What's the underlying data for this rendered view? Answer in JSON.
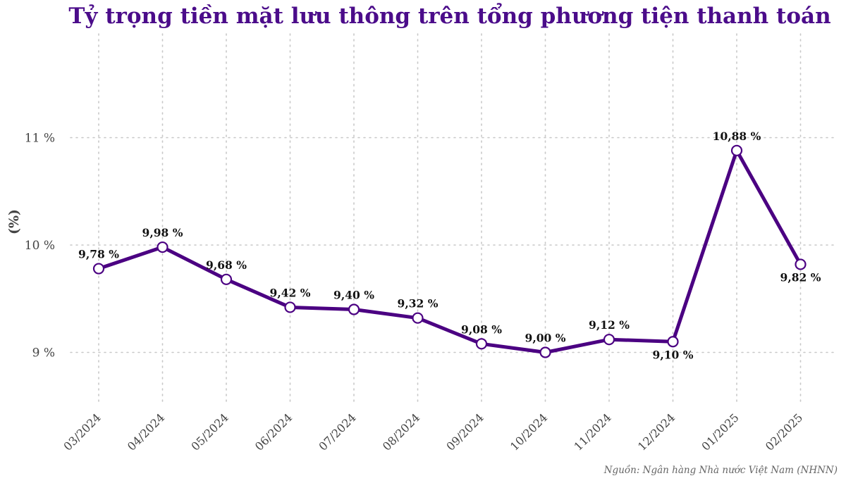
{
  "chart_data": {
    "type": "line",
    "title": "Tỷ trọng tiền mặt lưu thông trên tổng phương tiện thanh toán",
    "xlabel": "",
    "ylabel": "(%)",
    "categories": [
      "03/2024",
      "04/2024",
      "05/2024",
      "06/2024",
      "07/2024",
      "08/2024",
      "09/2024",
      "10/2024",
      "11/2024",
      "12/2024",
      "01/2025",
      "02/2025"
    ],
    "values": [
      9.78,
      9.98,
      9.68,
      9.42,
      9.4,
      9.32,
      9.08,
      9.0,
      9.12,
      9.1,
      10.88,
      9.82
    ],
    "data_labels": [
      "9,78 %",
      "9,98 %",
      "9,68 %",
      "9,42 %",
      "9,40 %",
      "9,32 %",
      "9,08 %",
      "9,00 %",
      "9,12 %",
      "9,10 %",
      "10,88 %",
      "9,82 %"
    ],
    "label_positions": [
      "above",
      "above",
      "above",
      "above",
      "above",
      "above",
      "above",
      "above",
      "above",
      "below",
      "above",
      "below"
    ],
    "yticks": [
      9,
      10,
      11
    ],
    "ytick_labels": [
      "9 %",
      "10 %",
      "11 %"
    ],
    "ylim": [
      8.55,
      12.0
    ],
    "grid": true,
    "source": "Nguồn: Ngân hàng Nhà nước Việt Nam (NHNN)",
    "colors": {
      "line": "#4b0082",
      "title": "#4b0c8a",
      "marker_fill": "#ffffff"
    }
  }
}
